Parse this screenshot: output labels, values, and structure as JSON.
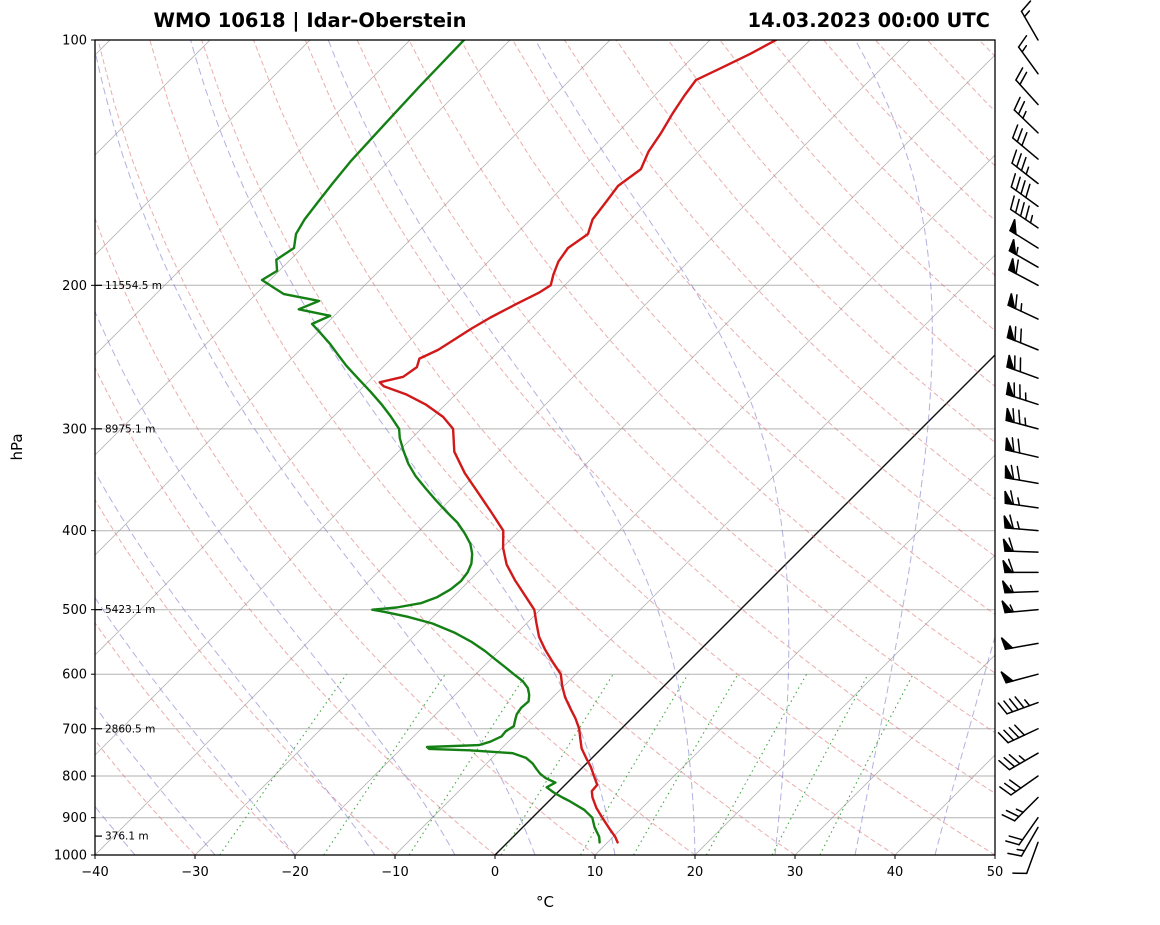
{
  "header": {
    "station_title": "WMO 10618 | Idar-Oberstein",
    "datetime_title": "14.03.2023 00:00 UTC"
  },
  "axes": {
    "y_label": "hPa",
    "x_label": "°C",
    "pressure_range": [
      100,
      1000
    ],
    "temp_range": [
      -40,
      50
    ],
    "pressure_ticks": [
      100,
      200,
      300,
      400,
      500,
      600,
      700,
      800,
      900,
      1000
    ],
    "temp_ticks": [
      -40,
      -30,
      -20,
      -10,
      0,
      10,
      20,
      30,
      40,
      50
    ],
    "temp_tick_labels": [
      "−40",
      "−30",
      "−20",
      "−10",
      "0",
      "10",
      "20",
      "30",
      "40",
      "50"
    ]
  },
  "height_labels": [
    {
      "pressure": 200,
      "label": "11554.5 m"
    },
    {
      "pressure": 300,
      "label": "8975.1 m"
    },
    {
      "pressure": 500,
      "label": "5423.1 m"
    },
    {
      "pressure": 700,
      "label": "2860.5 m"
    },
    {
      "pressure": 948,
      "label": "376.1 m"
    }
  ],
  "chart_data": {
    "type": "line",
    "variant": "skew-t-log-p",
    "title": "WMO 10618 | Idar-Oberstein",
    "subtitle": "14.03.2023 00:00 UTC",
    "xlabel": "°C",
    "ylabel": "hPa",
    "xlim": [
      -40,
      50
    ],
    "ylim": [
      1000,
      100
    ],
    "y_scale": "log",
    "skew": "45deg isotherms",
    "background": {
      "grid_color": "#999999",
      "isotherm_step": 10,
      "isotherm_color": "#8a8a8a",
      "zero_isotherm_color": "#111111",
      "dry_adiabat_color": "#d96a6a",
      "dry_adiabats_theta_c": [
        -40,
        -30,
        -20,
        -10,
        0,
        10,
        20,
        30,
        40,
        50,
        60,
        70,
        80,
        90,
        100,
        110,
        120,
        130,
        140,
        150,
        160,
        170,
        180,
        190,
        200
      ],
      "moist_adiabat_color": "#7d7dcc",
      "moist_adiabats_t0_c": [
        -60,
        -52,
        -44,
        -36,
        -28,
        -20,
        -12,
        -4,
        4,
        12,
        20,
        28,
        36,
        44,
        52
      ],
      "mixing_ratio_color": "#2f9e2f",
      "mixing_ratio_g_kg": [
        0.4,
        1,
        2,
        4,
        7,
        10,
        16,
        24,
        32
      ],
      "mixing_ratio_top_hpa": 600
    },
    "series": [
      {
        "name": "temperature",
        "color": "#d11919",
        "units": "degC vs hPa",
        "points": [
          [
            965,
            11.0
          ],
          [
            950,
            10.2
          ],
          [
            925,
            8.6
          ],
          [
            900,
            7.0
          ],
          [
            875,
            5.4
          ],
          [
            850,
            4.0
          ],
          [
            835,
            3.3
          ],
          [
            820,
            3.2
          ],
          [
            800,
            2.0
          ],
          [
            780,
            0.8
          ],
          [
            760,
            -0.6
          ],
          [
            740,
            -2.0
          ],
          [
            720,
            -3.1
          ],
          [
            700,
            -4.2
          ],
          [
            680,
            -5.6
          ],
          [
            660,
            -7.2
          ],
          [
            640,
            -8.8
          ],
          [
            620,
            -10.2
          ],
          [
            600,
            -11.5
          ],
          [
            580,
            -13.5
          ],
          [
            560,
            -15.5
          ],
          [
            540,
            -17.4
          ],
          [
            520,
            -19.0
          ],
          [
            500,
            -20.6
          ],
          [
            480,
            -23.0
          ],
          [
            460,
            -25.5
          ],
          [
            440,
            -27.9
          ],
          [
            420,
            -29.9
          ],
          [
            400,
            -31.6
          ],
          [
            380,
            -34.6
          ],
          [
            360,
            -37.8
          ],
          [
            340,
            -41.2
          ],
          [
            320,
            -44.4
          ],
          [
            300,
            -46.8
          ],
          [
            290,
            -49.0
          ],
          [
            280,
            -52.0
          ],
          [
            272,
            -55.0
          ],
          [
            266,
            -58.0
          ],
          [
            263,
            -58.8
          ],
          [
            259,
            -57.0
          ],
          [
            252,
            -56.6
          ],
          [
            246,
            -57.2
          ],
          [
            240,
            -56.2
          ],
          [
            233,
            -55.6
          ],
          [
            226,
            -55.0
          ],
          [
            219,
            -54.2
          ],
          [
            211,
            -53.0
          ],
          [
            204,
            -51.8
          ],
          [
            200,
            -51.4
          ],
          [
            194,
            -52.2
          ],
          [
            187,
            -53.0
          ],
          [
            180,
            -53.4
          ],
          [
            173,
            -52.8
          ],
          [
            166,
            -53.8
          ],
          [
            158,
            -54.2
          ],
          [
            151,
            -54.6
          ],
          [
            144,
            -54.0
          ],
          [
            137,
            -55.0
          ],
          [
            130,
            -55.6
          ],
          [
            123,
            -56.4
          ],
          [
            117,
            -57.0
          ],
          [
            112,
            -57.4
          ],
          [
            108,
            -56.0
          ],
          [
            104,
            -54.6
          ],
          [
            100,
            -53.4
          ]
        ]
      },
      {
        "name": "dewpoint",
        "color": "#148014",
        "units": "degC vs hPa",
        "points": [
          [
            965,
            9.2
          ],
          [
            950,
            8.6
          ],
          [
            925,
            7.2
          ],
          [
            900,
            6.0
          ],
          [
            880,
            4.4
          ],
          [
            860,
            2.2
          ],
          [
            850,
            1.0
          ],
          [
            838,
            -0.4
          ],
          [
            826,
            -1.6
          ],
          [
            815,
            -1.2
          ],
          [
            805,
            -2.6
          ],
          [
            795,
            -3.6
          ],
          [
            785,
            -4.4
          ],
          [
            772,
            -5.4
          ],
          [
            760,
            -6.6
          ],
          [
            750,
            -8.4
          ],
          [
            744,
            -13.0
          ],
          [
            741,
            -17.2
          ],
          [
            737,
            -17.6
          ],
          [
            733,
            -12.6
          ],
          [
            726,
            -11.8
          ],
          [
            715,
            -11.2
          ],
          [
            705,
            -11.3
          ],
          [
            695,
            -11.0
          ],
          [
            685,
            -11.4
          ],
          [
            672,
            -11.9
          ],
          [
            660,
            -12.1
          ],
          [
            648,
            -12.0
          ],
          [
            636,
            -12.6
          ],
          [
            624,
            -13.4
          ],
          [
            612,
            -14.6
          ],
          [
            600,
            -16.2
          ],
          [
            588,
            -17.8
          ],
          [
            575,
            -19.6
          ],
          [
            562,
            -21.4
          ],
          [
            548,
            -23.6
          ],
          [
            534,
            -26.2
          ],
          [
            520,
            -29.4
          ],
          [
            510,
            -32.6
          ],
          [
            503,
            -35.4
          ],
          [
            500,
            -36.8
          ],
          [
            497,
            -34.6
          ],
          [
            491,
            -32.6
          ],
          [
            483,
            -31.6
          ],
          [
            472,
            -31.0
          ],
          [
            461,
            -30.8
          ],
          [
            450,
            -31.0
          ],
          [
            439,
            -31.5
          ],
          [
            427,
            -32.4
          ],
          [
            415,
            -33.6
          ],
          [
            403,
            -35.2
          ],
          [
            391,
            -37.0
          ],
          [
            379,
            -39.2
          ],
          [
            367,
            -41.4
          ],
          [
            355,
            -43.6
          ],
          [
            343,
            -45.8
          ],
          [
            331,
            -47.8
          ],
          [
            319,
            -49.6
          ],
          [
            308,
            -51.2
          ],
          [
            300,
            -52.2
          ],
          [
            290,
            -54.2
          ],
          [
            280,
            -56.4
          ],
          [
            270,
            -58.8
          ],
          [
            260,
            -61.4
          ],
          [
            251,
            -63.8
          ],
          [
            243,
            -65.8
          ],
          [
            236,
            -67.6
          ],
          [
            229,
            -69.6
          ],
          [
            223,
            -71.4
          ],
          [
            218,
            -70.4
          ],
          [
            214,
            -74.2
          ],
          [
            209,
            -73.0
          ],
          [
            205,
            -77.2
          ],
          [
            201,
            -79.0
          ],
          [
            197,
            -80.8
          ],
          [
            192,
            -80.2
          ],
          [
            186,
            -81.4
          ],
          [
            180,
            -80.8
          ],
          [
            173,
            -82.0
          ],
          [
            166,
            -82.6
          ],
          [
            158,
            -83.0
          ],
          [
            150,
            -83.4
          ],
          [
            141,
            -83.8
          ],
          [
            132,
            -84.0
          ],
          [
            123,
            -84.2
          ],
          [
            114,
            -84.4
          ],
          [
            107,
            -84.5
          ],
          [
            100,
            -84.6
          ]
        ]
      }
    ],
    "wind_barbs": [
      {
        "p": 965,
        "speed_kt": 10,
        "dir_deg": 200
      },
      {
        "p": 925,
        "speed_kt": 15,
        "dir_deg": 210
      },
      {
        "p": 900,
        "speed_kt": 20,
        "dir_deg": 215
      },
      {
        "p": 850,
        "speed_kt": 25,
        "dir_deg": 225
      },
      {
        "p": 800,
        "speed_kt": 30,
        "dir_deg": 235
      },
      {
        "p": 750,
        "speed_kt": 35,
        "dir_deg": 240
      },
      {
        "p": 700,
        "speed_kt": 40,
        "dir_deg": 245
      },
      {
        "p": 650,
        "speed_kt": 45,
        "dir_deg": 250
      },
      {
        "p": 600,
        "speed_kt": 50,
        "dir_deg": 255
      },
      {
        "p": 550,
        "speed_kt": 50,
        "dir_deg": 260
      },
      {
        "p": 500,
        "speed_kt": 55,
        "dir_deg": 265
      },
      {
        "p": 475,
        "speed_kt": 55,
        "dir_deg": 268
      },
      {
        "p": 450,
        "speed_kt": 60,
        "dir_deg": 270
      },
      {
        "p": 425,
        "speed_kt": 60,
        "dir_deg": 272
      },
      {
        "p": 400,
        "speed_kt": 65,
        "dir_deg": 275
      },
      {
        "p": 375,
        "speed_kt": 65,
        "dir_deg": 278
      },
      {
        "p": 350,
        "speed_kt": 70,
        "dir_deg": 280
      },
      {
        "p": 325,
        "speed_kt": 70,
        "dir_deg": 283
      },
      {
        "p": 300,
        "speed_kt": 75,
        "dir_deg": 285
      },
      {
        "p": 280,
        "speed_kt": 75,
        "dir_deg": 288
      },
      {
        "p": 260,
        "speed_kt": 70,
        "dir_deg": 290
      },
      {
        "p": 240,
        "speed_kt": 70,
        "dir_deg": 292
      },
      {
        "p": 220,
        "speed_kt": 65,
        "dir_deg": 295
      },
      {
        "p": 200,
        "speed_kt": 60,
        "dir_deg": 298
      },
      {
        "p": 190,
        "speed_kt": 55,
        "dir_deg": 300
      },
      {
        "p": 180,
        "speed_kt": 50,
        "dir_deg": 302
      },
      {
        "p": 170,
        "speed_kt": 45,
        "dir_deg": 304
      },
      {
        "p": 160,
        "speed_kt": 40,
        "dir_deg": 306
      },
      {
        "p": 150,
        "speed_kt": 35,
        "dir_deg": 308
      },
      {
        "p": 140,
        "speed_kt": 30,
        "dir_deg": 310
      },
      {
        "p": 130,
        "speed_kt": 25,
        "dir_deg": 314
      },
      {
        "p": 120,
        "speed_kt": 20,
        "dir_deg": 318
      },
      {
        "p": 110,
        "speed_kt": 15,
        "dir_deg": 324
      },
      {
        "p": 100,
        "speed_kt": 15,
        "dir_deg": 330
      }
    ]
  }
}
